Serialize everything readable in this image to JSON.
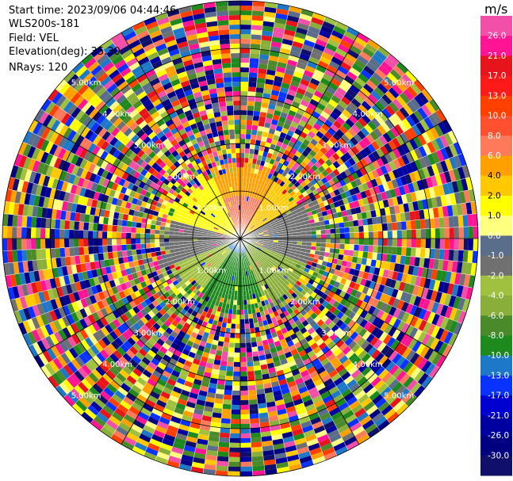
{
  "header": {
    "start_time": "Start time: 2023/09/06 04:44:46",
    "instrument": "WLS200s-181",
    "field": "Field: VEL",
    "elevation": "Elevation(deg): 35.30",
    "nrays": "NRays: 120"
  },
  "chart_data": {
    "type": "heatmap",
    "projection": "polar (PPI scan)",
    "field": "VEL",
    "ray_count": 120,
    "range_rings": [
      {
        "range_km": 1.0,
        "label": "1.00km"
      },
      {
        "range_km": 2.0,
        "label": "2.00km"
      },
      {
        "range_km": 3.0,
        "label": "3.00km"
      },
      {
        "range_km": 4.0,
        "label": "4.00km"
      },
      {
        "range_km": 5.0,
        "label": "5.00km"
      }
    ],
    "max_range_km": 5.0,
    "colorbar": {
      "unit": "m/s",
      "vmin": -30.0,
      "vmax": 30.0,
      "ticks": [
        "26.0",
        "21.0",
        "17.0",
        "13.0",
        "10.0",
        "8.0",
        "6.0",
        "4.0",
        "2.0",
        "1.0",
        "0.0",
        "-1.0",
        "-2.0",
        "-4.0",
        "-6.0",
        "-8.0",
        "-10.0",
        "-13.0",
        "-17.0",
        "-21.0",
        "-26.0",
        "-30.0"
      ],
      "colors": [
        "#f24fa8",
        "#ff1493",
        "#e8141c",
        "#ff1a1a",
        "#ff4000",
        "#ff5030",
        "#ff7a5a",
        "#ffa000",
        "#ffc800",
        "#ffff00",
        "#ffff80",
        "#5a6e8c",
        "#707070",
        "#a0c040",
        "#8aae3a",
        "#4a8a2a",
        "#1e8a1e",
        "#1e78c8",
        "#0a32ff",
        "#0000d0",
        "#0000a0",
        "#000080",
        "#10106a"
      ]
    },
    "near_range_pattern": {
      "north": "#ffa000",
      "north_east": "#ffc800",
      "east": "#707070",
      "south_east": "#8aae3a",
      "south": "#1e8a1e",
      "south_west": "#a0c040",
      "west": "#707070",
      "north_west": "#ffff00",
      "center_south": "#1e78c8"
    }
  }
}
